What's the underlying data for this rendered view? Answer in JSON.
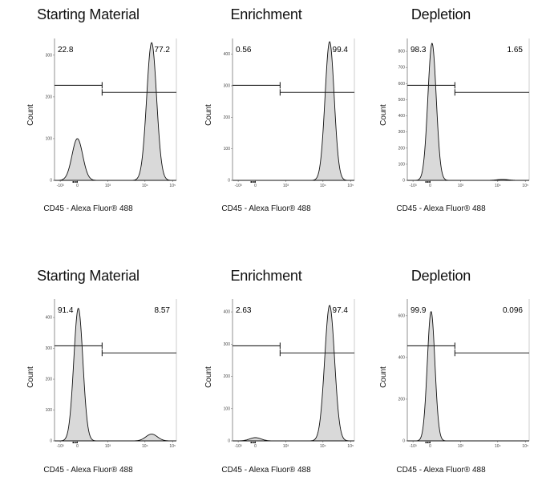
{
  "chart_data": [
    {
      "type": "area",
      "title": "Starting Material",
      "xlabel": "CD45 - Alexa Fluor® 488",
      "ylabel": "Count",
      "y_ticks": [
        "0",
        "100",
        "200",
        "300"
      ],
      "ylim": [
        0,
        340
      ],
      "x_ticks": [
        "-10³",
        "0",
        "10³",
        "10⁴",
        "10⁵"
      ],
      "gate_left": "22.8",
      "gate_right": "77.2",
      "peaks": [
        {
          "x": 0,
          "height": 100,
          "width": 0.28
        },
        {
          "x": 3.9,
          "height": 330,
          "width": 0.26
        }
      ]
    },
    {
      "type": "area",
      "title": "Enrichment",
      "xlabel": "CD45 - Alexa Fluor® 488",
      "ylabel": "Count",
      "y_ticks": [
        "0",
        "100",
        "200",
        "300",
        "400"
      ],
      "ylim": [
        0,
        450
      ],
      "x_ticks": [
        "-10³",
        "0",
        "10³",
        "10⁴",
        "10⁵"
      ],
      "gate_left": "0.56",
      "gate_right": "99.4",
      "peaks": [
        {
          "x": 3.9,
          "height": 440,
          "width": 0.24
        }
      ]
    },
    {
      "type": "area",
      "title": "Depletion",
      "xlabel": "CD45 - Alexa Fluor® 488",
      "ylabel": "Count",
      "y_ticks": [
        "0",
        "100",
        "200",
        "300",
        "400",
        "500",
        "600",
        "700",
        "800"
      ],
      "ylim": [
        0,
        880
      ],
      "x_ticks": [
        "-10³",
        "0",
        "10³",
        "10⁴",
        "10⁵"
      ],
      "gate_left": "98.3",
      "gate_right": "1.65",
      "peaks": [
        {
          "x": 0.1,
          "height": 850,
          "width": 0.22
        },
        {
          "x": 3.8,
          "height": 6,
          "width": 0.3
        }
      ]
    },
    {
      "type": "area",
      "title": "Starting Material",
      "xlabel": "CD45 - Alexa Fluor® 488",
      "ylabel": "Count",
      "y_ticks": [
        "0",
        "100",
        "200",
        "300",
        "400"
      ],
      "ylim": [
        0,
        460
      ],
      "x_ticks": [
        "-10³",
        "0",
        "10³",
        "10⁴",
        "10⁵"
      ],
      "gate_left": "91.4",
      "gate_right": "8.57",
      "peaks": [
        {
          "x": 0.05,
          "height": 430,
          "width": 0.24
        },
        {
          "x": 3.9,
          "height": 22,
          "width": 0.3
        }
      ]
    },
    {
      "type": "area",
      "title": "Enrichment",
      "xlabel": "CD45 - Alexa Fluor® 488",
      "ylabel": "Count",
      "y_ticks": [
        "0",
        "100",
        "200",
        "300",
        "400"
      ],
      "ylim": [
        0,
        440
      ],
      "x_ticks": [
        "-10³",
        "0",
        "10³",
        "10⁴",
        "10⁵"
      ],
      "gate_left": "2.63",
      "gate_right": "97.4",
      "peaks": [
        {
          "x": 0,
          "height": 10,
          "width": 0.3
        },
        {
          "x": 3.9,
          "height": 420,
          "width": 0.26
        }
      ]
    },
    {
      "type": "area",
      "title": "Depletion",
      "xlabel": "CD45 - Alexa Fluor® 488",
      "ylabel": "Count",
      "y_ticks": [
        "0",
        "200",
        "400",
        "600"
      ],
      "ylim": [
        0,
        680
      ],
      "x_ticks": [
        "-10³",
        "0",
        "10³",
        "10⁴",
        "10⁵"
      ],
      "gate_left": "99.9",
      "gate_right": "0.096",
      "peaks": [
        {
          "x": 0.05,
          "height": 620,
          "width": 0.2
        }
      ]
    }
  ]
}
